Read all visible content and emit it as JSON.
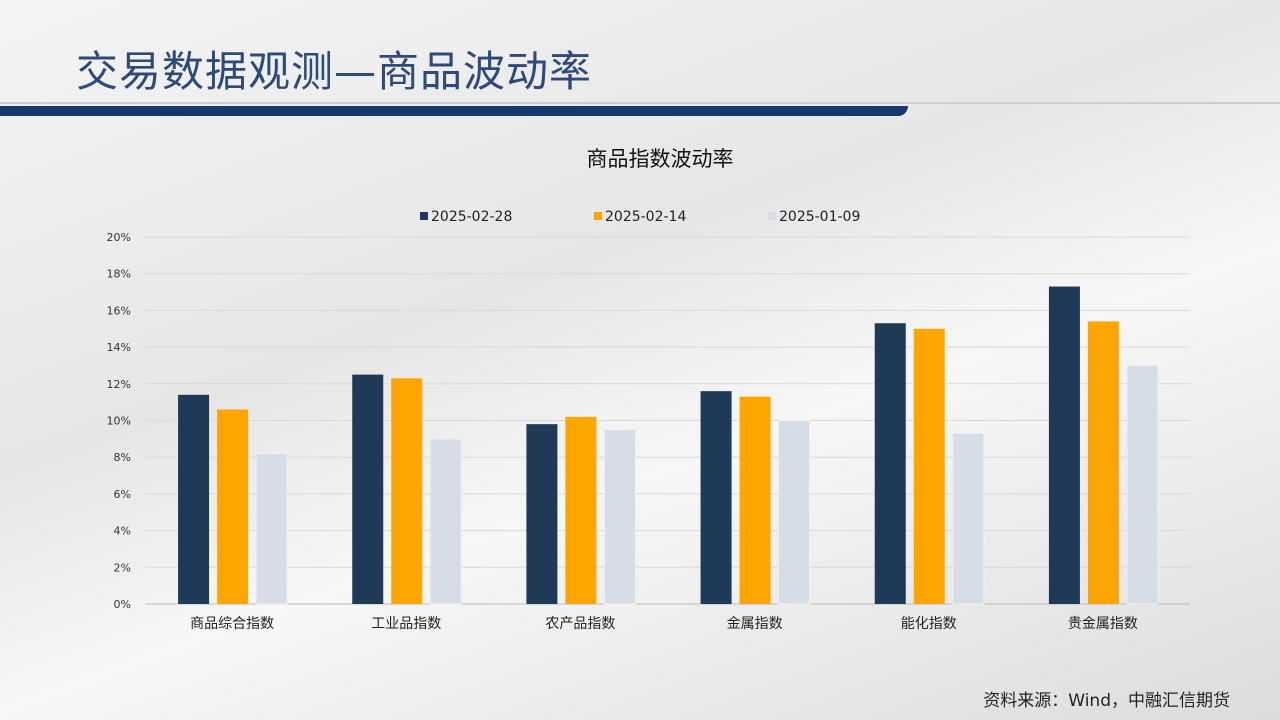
{
  "page_title": "交易数据观测—商品波动率",
  "source": "资料来源：Wind，中融汇信期货",
  "colors": {
    "s1": "#1f3a56",
    "s2": "#ffa500",
    "s3": "#d6dde6"
  },
  "chart_data": {
    "type": "bar",
    "title": "商品指数波动率",
    "categories": [
      "商品综合指数",
      "工业品指数",
      "农产品指数",
      "金属指数",
      "能化指数",
      "贵金属指数"
    ],
    "series": [
      {
        "name": "2025-02-28",
        "values": [
          11.4,
          12.5,
          9.8,
          11.6,
          15.3,
          17.3
        ]
      },
      {
        "name": "2025-02-14",
        "values": [
          10.6,
          12.3,
          10.2,
          11.3,
          15.0,
          15.4
        ]
      },
      {
        "name": "2025-01-09",
        "values": [
          8.2,
          9.0,
          9.5,
          10.0,
          9.3,
          13.0
        ]
      }
    ],
    "yticks": [
      "0%",
      "2%",
      "4%",
      "6%",
      "8%",
      "10%",
      "12%",
      "14%",
      "16%",
      "18%",
      "20%"
    ],
    "ylim": [
      0,
      20
    ],
    "ylabel": "",
    "xlabel": "",
    "grid": true,
    "legend": "top"
  }
}
